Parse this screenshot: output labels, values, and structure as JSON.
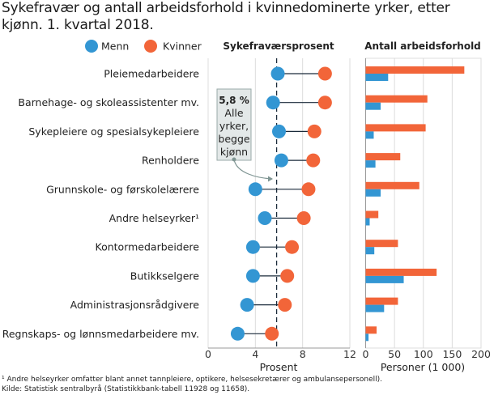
{
  "chart_data": [
    {
      "type": "dot",
      "title": "Sykefraværsprosent",
      "xlabel": "Prosent",
      "xlim": [
        0,
        12
      ],
      "xticks": [
        "0",
        "4",
        "8",
        "12"
      ],
      "categories": [
        "Pleiemedarbeidere",
        "Barnehage- og skoleassistenter mv.",
        "Sykepleiere og spesialsykepleiere",
        "Renholdere",
        "Grunnskole- og førskolelærere",
        "Andre helseyrker¹",
        "Kontormedarbeidere",
        "Butikkselgere",
        "Administrasjonsrådgivere",
        "Regnskaps- og lønnsmedarbeidere mv."
      ],
      "series": [
        {
          "name": "Menn",
          "color": "#3396d3",
          "values": [
            5.9,
            5.5,
            6.0,
            6.2,
            4.0,
            4.8,
            3.8,
            3.8,
            3.3,
            2.5
          ]
        },
        {
          "name": "Kvinner",
          "color": "#f26539",
          "values": [
            9.9,
            9.9,
            9.0,
            8.9,
            8.5,
            8.1,
            7.1,
            6.7,
            6.5,
            5.4
          ]
        }
      ],
      "reference_line": {
        "value": 5.8,
        "label_value": "5,8 %",
        "label_text": [
          "Alle",
          "yrker,",
          "begge",
          "kjønn"
        ]
      },
      "grid": true
    },
    {
      "type": "bar",
      "orientation": "horizontal",
      "title": "Antall arbeidsforhold",
      "xlabel": "Personer (1 000)",
      "xlim": [
        0,
        200
      ],
      "xticks": [
        "0",
        "50",
        "100",
        "150",
        "200"
      ],
      "series": [
        {
          "name": "Kvinner",
          "color": "#f26539",
          "values": [
            171,
            107,
            104,
            60,
            93,
            22,
            56,
            123,
            56,
            19
          ]
        },
        {
          "name": "Menn",
          "color": "#3396d3",
          "values": [
            39,
            26,
            14,
            17,
            26,
            7,
            15,
            66,
            32,
            5
          ]
        }
      ],
      "grid": true
    }
  ],
  "title": "Sykefravær og antall arbeidsforhold i kvinnedominerte yrker, etter kjønn. 1. kvartal 2018.",
  "legend": [
    {
      "label": "Menn",
      "color": "#3396d3"
    },
    {
      "label": "Kvinner",
      "color": "#f26539"
    }
  ],
  "footnote": "¹ Andre helseyrker omfatter blant annet tannpleiere, optikere, helsesekretærer og ambulansepersonell).",
  "source": "Kilde: Statistisk sentralbyrå (Statistikkbank-tabell 11928 og 11658)."
}
